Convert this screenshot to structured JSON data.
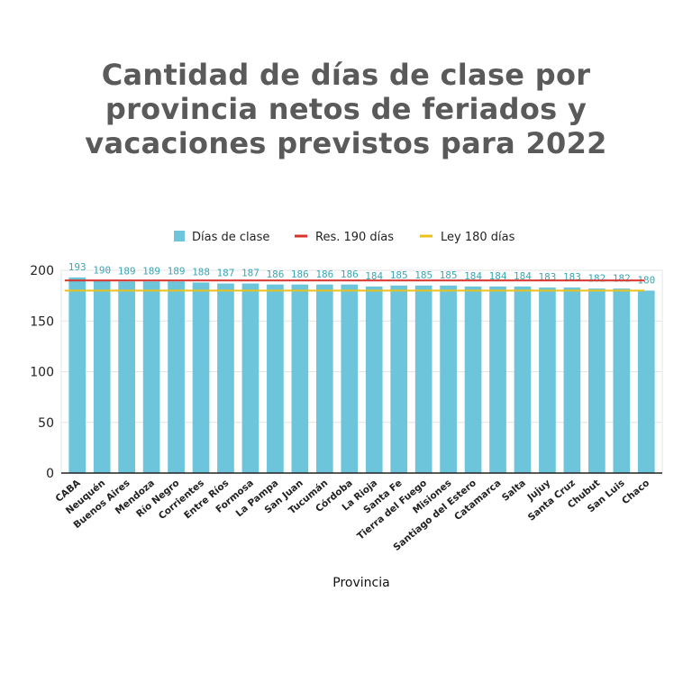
{
  "title_lines": [
    "Cantidad de días de clase por",
    "provincia netos de feriados y",
    "vacaciones previstos para 2022"
  ],
  "chart_data": {
    "type": "bar",
    "title": "Cantidad de días de clase por provincia netos de feriados y vacaciones previstos para 2022",
    "xlabel": "Provincia",
    "ylabel": "",
    "ylim": [
      0,
      200
    ],
    "yticks": [
      0,
      50,
      100,
      150,
      200
    ],
    "grid": true,
    "legend_position": "top",
    "categories": [
      "CABA",
      "Neuquén",
      "Buenos Aires",
      "Mendoza",
      "Río Negro",
      "Corrientes",
      "Entre Ríos",
      "Formosa",
      "La Pampa",
      "San Juan",
      "Tucumán",
      "Córdoba",
      "La Rioja",
      "Santa Fe",
      "Tierra del Fuego",
      "Misiones",
      "Santiago del Estero",
      "Catamarca",
      "Salta",
      "Jujuy",
      "Santa Cruz",
      "Chubut",
      "San Luis",
      "Chaco"
    ],
    "series": [
      {
        "name": "Días de clase",
        "kind": "bar",
        "color": "#6cc5db",
        "values": [
          193,
          190,
          189,
          189,
          189,
          188,
          187,
          187,
          186,
          186,
          186,
          186,
          184,
          185,
          185,
          185,
          184,
          184,
          184,
          183,
          183,
          182,
          182,
          180
        ]
      },
      {
        "name": "Res. 190 días",
        "kind": "hline",
        "color": "#d8322a",
        "value": 190
      },
      {
        "name": "Ley 180 días",
        "kind": "hline",
        "color": "#e9c21f",
        "value": 180
      }
    ]
  }
}
